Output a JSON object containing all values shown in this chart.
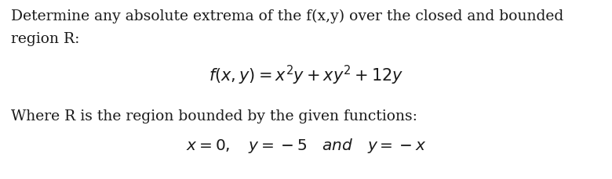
{
  "background_color": "#ffffff",
  "text_color": "#1a1a1a",
  "body_fontsize": 13.5,
  "formula_fontsize": 15,
  "constraints_fontsize": 14.5,
  "line1": "Determine any absolute extrema of the f(x,y) over the closed and bounded",
  "line2": "region R:",
  "line3": "Where R is the region bounded by the given functions:"
}
